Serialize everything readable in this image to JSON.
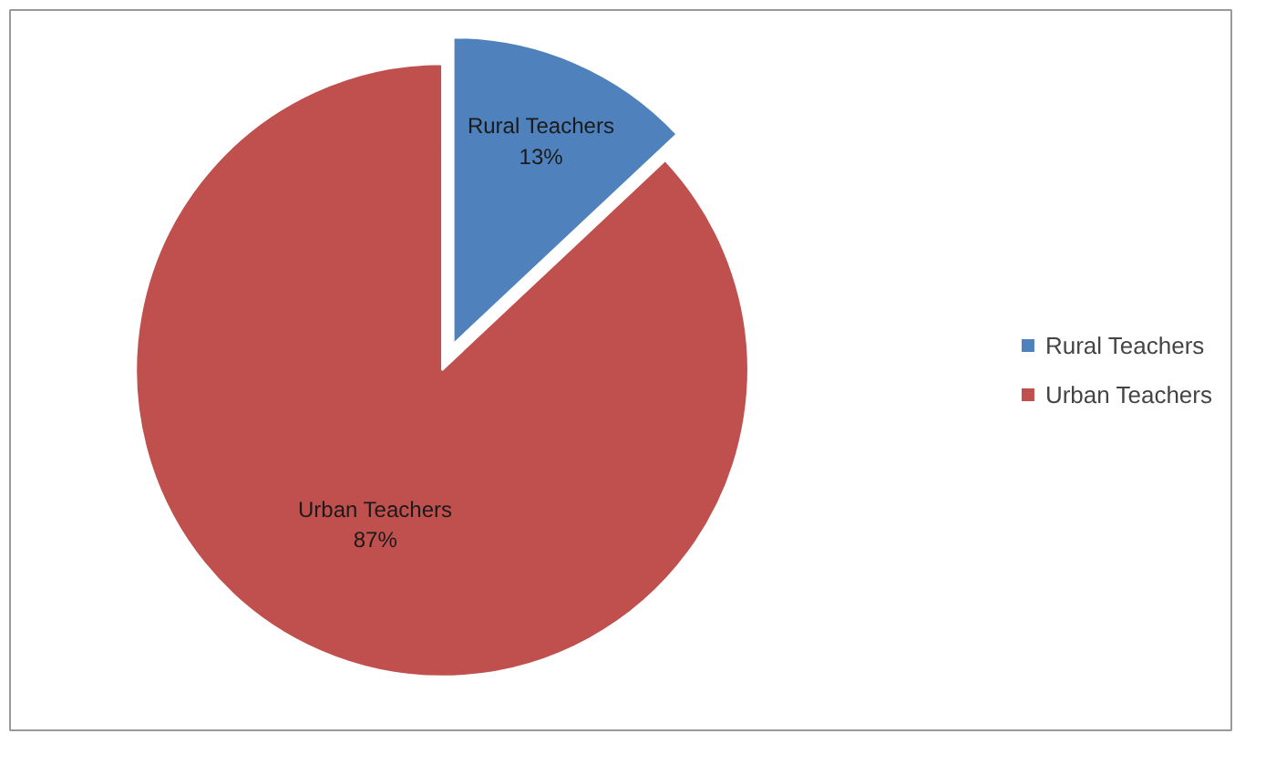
{
  "chart_data": {
    "type": "pie",
    "categories": [
      "Rural Teachers",
      "Urban Teachers"
    ],
    "values": [
      13,
      87
    ],
    "colors": [
      "#4f81bd",
      "#c0504d"
    ],
    "value_labels": [
      "13%",
      "87%"
    ],
    "legend": "right"
  }
}
